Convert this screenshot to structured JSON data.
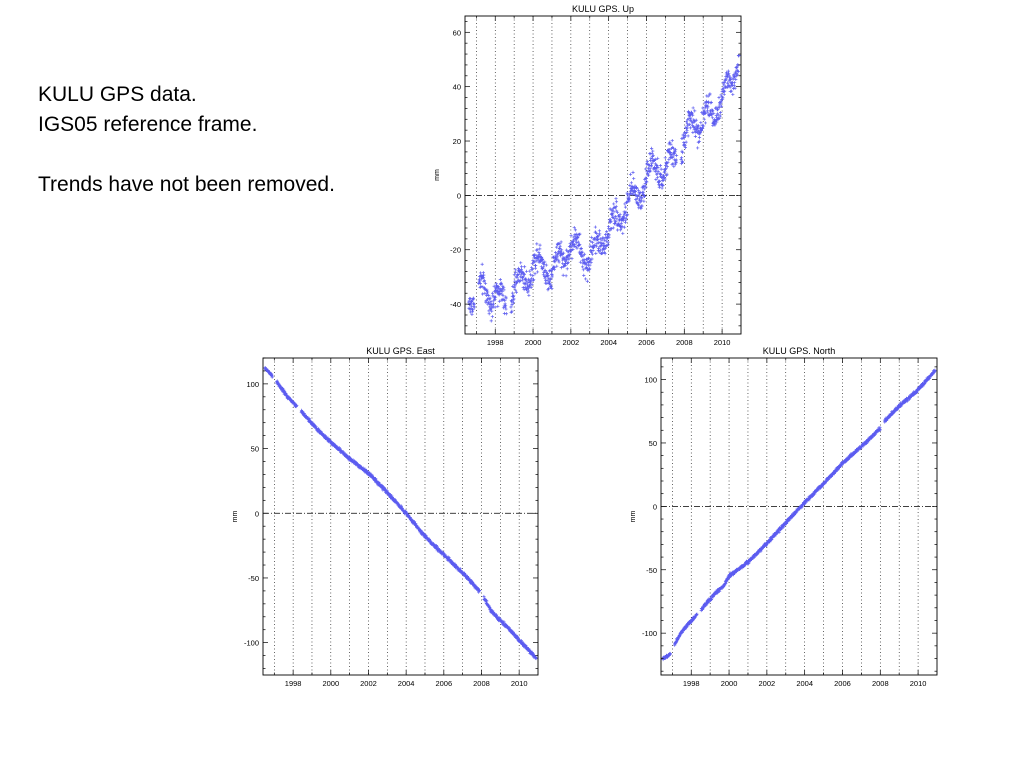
{
  "caption": {
    "line1": "KULU GPS data.",
    "line2": "IGS05 reference frame.",
    "line3": "Trends have not been removed."
  },
  "colors": {
    "points": "#5c5cf0",
    "axis": "#000000",
    "grid": "#000000"
  },
  "chart_data": [
    {
      "type": "scatter",
      "title": "KULU GPS.  Up",
      "xlabel": "",
      "ylabel": "mm",
      "xlim": [
        1996.4,
        2011.0
      ],
      "ylim": [
        -51,
        66
      ],
      "yticks": [
        -40,
        -20,
        0,
        20,
        40,
        60
      ],
      "xticks": [
        1998,
        2000,
        2002,
        2004,
        2006,
        2008,
        2010
      ],
      "xtick_labels": [
        "1998",
        "2000",
        "2002",
        "2004",
        "2006",
        "2008",
        "2010"
      ],
      "zero_line": true,
      "vertical_grid": "yearly, dotted",
      "marker": "+",
      "series": [
        {
          "x": [
            1996.6,
            1997.4,
            1998.0,
            1998.5,
            1999.5,
            2000.0,
            2000.5,
            2001.0,
            2001.5,
            2002.0,
            2002.5,
            2003.0,
            2003.5,
            2004.0,
            2004.5,
            2005.0,
            2005.5,
            2006.0,
            2006.5,
            2007.0,
            2007.5,
            2008.0,
            2008.5,
            2009.0,
            2009.5,
            2010.0,
            2010.5,
            2010.9
          ],
          "y": [
            -37,
            -35,
            -37,
            -40,
            -30,
            -27,
            -24,
            -29,
            -22,
            -19,
            -20,
            -24,
            -17,
            -13,
            -8,
            -3,
            0,
            7,
            10,
            9,
            14,
            20,
            27,
            28,
            30,
            37,
            40,
            54
          ],
          "gaps_after": [
            1996.9,
            1998.6,
            2007.6
          ]
        }
      ]
    },
    {
      "type": "scatter",
      "title": "KULU GPS.  East",
      "xlabel": "",
      "ylabel": "mm",
      "xlim": [
        1996.4,
        2011.0
      ],
      "ylim": [
        -125,
        120
      ],
      "yticks": [
        -100,
        -50,
        0,
        50,
        100
      ],
      "xticks": [
        1998,
        2000,
        2002,
        2004,
        2006,
        2008,
        2010
      ],
      "xtick_labels": [
        "1998",
        "2000",
        "2002",
        "2004",
        "2006",
        "2008",
        "2010"
      ],
      "zero_line": true,
      "vertical_grid": "yearly, dotted",
      "marker": "+",
      "series": [
        {
          "x": [
            1996.5,
            1996.8,
            1997.3,
            1997.7,
            1998.1,
            1999.4,
            2000.0,
            2001.0,
            2002.0,
            2003.0,
            2004.0,
            2005.0,
            2006.0,
            2007.0,
            2008.0,
            2008.5,
            2009.0,
            2009.5,
            2010.0,
            2010.9
          ],
          "y": [
            112,
            108,
            98,
            90,
            84,
            63,
            55,
            42,
            31,
            16,
            0,
            -18,
            -32,
            -46,
            -62,
            -75,
            -83,
            -90,
            -98,
            -112
          ],
          "gaps_after": [
            1996.9,
            1998.2,
            2007.9
          ]
        }
      ]
    },
    {
      "type": "scatter",
      "title": "KULU GPS.  North",
      "xlabel": "",
      "ylabel": "mm",
      "xlim": [
        1996.4,
        2011.0
      ],
      "ylim": [
        -133,
        117
      ],
      "yticks": [
        -100,
        -50,
        0,
        50,
        100
      ],
      "xticks": [
        1998,
        2000,
        2002,
        2004,
        2006,
        2008,
        2010
      ],
      "xtick_labels": [
        "1998",
        "2000",
        "2002",
        "2004",
        "2006",
        "2008",
        "2010"
      ],
      "zero_line": true,
      "vertical_grid": "yearly, dotted",
      "marker": "+",
      "series": [
        {
          "x": [
            1996.5,
            1996.8,
            1997.4,
            1997.9,
            1998.2,
            1999.3,
            1999.7,
            2000.0,
            2001.0,
            2002.0,
            2003.0,
            2004.0,
            2005.0,
            2006.0,
            2007.0,
            2007.9,
            2008.4,
            2009.0,
            2010.0,
            2010.9
          ],
          "y": [
            -120,
            -118,
            -101,
            -92,
            -87,
            -68,
            -63,
            -55,
            -44,
            -29,
            -13,
            3,
            18,
            34,
            47,
            60,
            70,
            79,
            92,
            107
          ],
          "gaps_after": [
            1996.9,
            1998.3,
            2008.0
          ]
        }
      ]
    }
  ]
}
